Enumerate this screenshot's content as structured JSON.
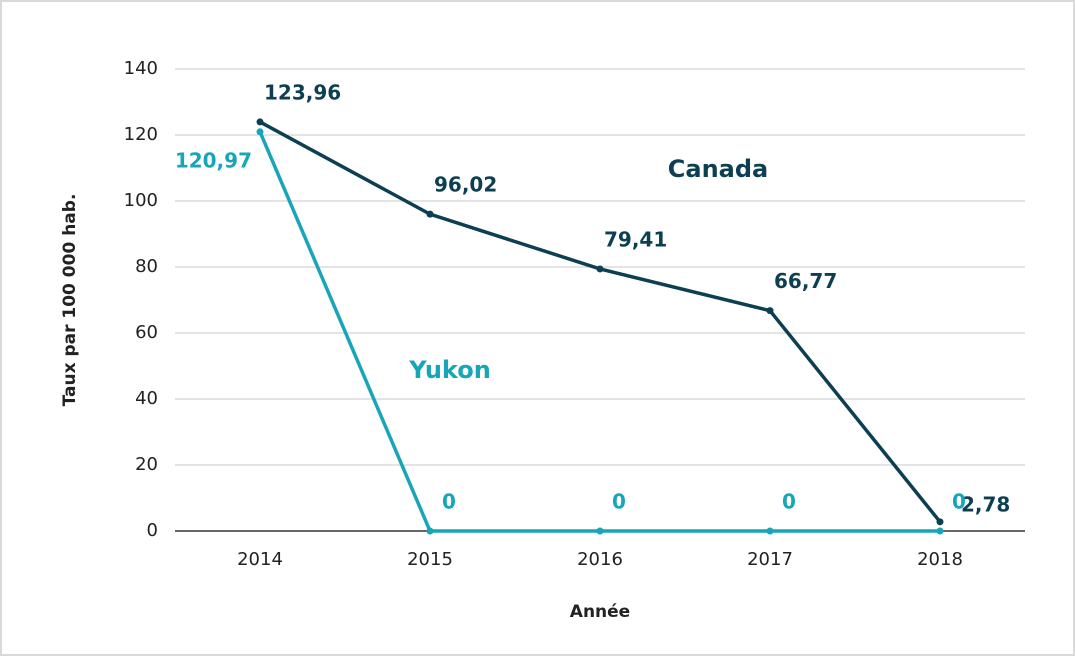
{
  "chart_data": {
    "type": "line",
    "x_label": "Année",
    "y_label": "Taux par 100 000 hab.",
    "categories": [
      "2014",
      "2015",
      "2016",
      "2017",
      "2018"
    ],
    "series": [
      {
        "name": "Canada",
        "color": "#0d3f52",
        "values": [
          123.96,
          96.02,
          79.41,
          66.77,
          2.78
        ],
        "value_labels": [
          "123,96",
          "96,02",
          "79,41",
          "66,77",
          "2,78"
        ]
      },
      {
        "name": "Yukon",
        "color": "#17a6b8",
        "values": [
          120.97,
          0,
          0,
          0,
          0
        ],
        "value_labels": [
          "120,97",
          "0",
          "0",
          "0",
          "0"
        ]
      }
    ],
    "ylim": [
      0,
      140
    ],
    "yticks": [
      0,
      20,
      40,
      60,
      80,
      100,
      120,
      140
    ],
    "grid": true
  }
}
